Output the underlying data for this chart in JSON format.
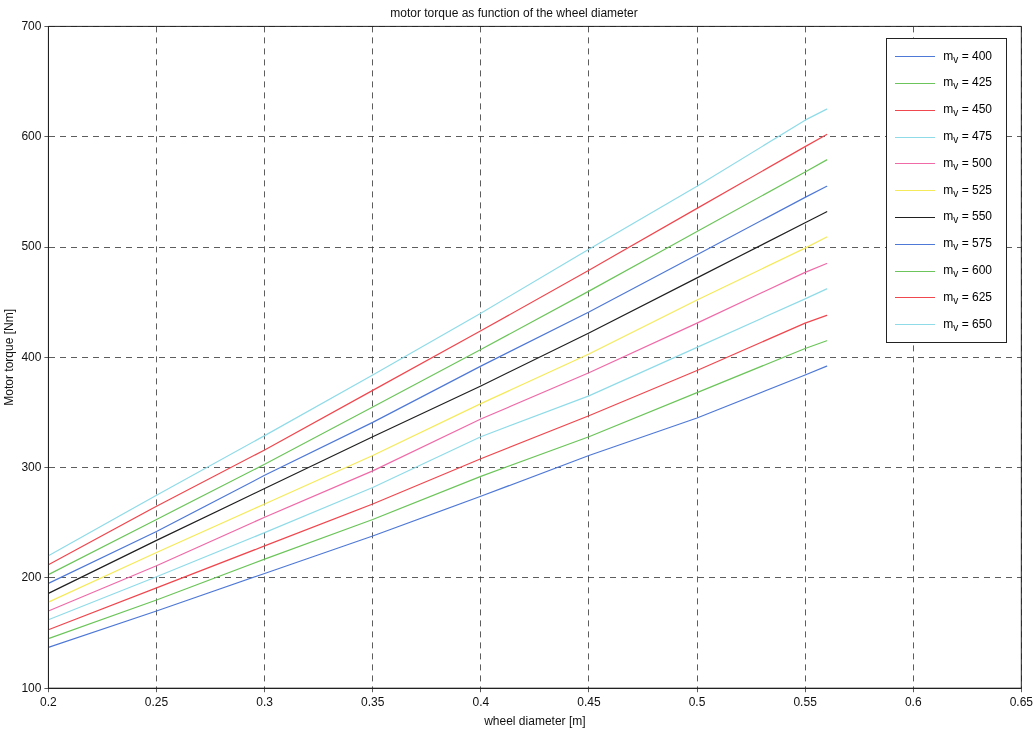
{
  "chart_data": {
    "type": "line",
    "title": "motor torque as function of the wheel diameter",
    "xlabel": "wheel diameter [m]",
    "ylabel": "Motor torque [Nm]",
    "x": [
      0.2,
      0.25,
      0.3,
      0.35,
      0.4,
      0.45,
      0.5,
      0.55,
      0.56
    ],
    "xlim": [
      0.2,
      0.65
    ],
    "xticks": [
      0.2,
      0.25,
      0.3,
      0.35,
      0.4,
      0.45,
      0.5,
      0.55,
      0.6,
      0.65
    ],
    "ylim": [
      100,
      700
    ],
    "yticks": [
      100,
      200,
      300,
      400,
      500,
      600,
      700
    ],
    "grid": true,
    "legend": "top right",
    "marker": "none",
    "line_style": "solid",
    "series": [
      {
        "name": "m$_{v}$ = 400",
        "color": "#4f79d6",
        "values": [
          137,
          170,
          204,
          238,
          274,
          311,
          345,
          384,
          392
        ]
      },
      {
        "name": "m$_{v}$ = 425",
        "color": "#6cc55a",
        "values": [
          145,
          180,
          217,
          253,
          292,
          328,
          368,
          408,
          415
        ]
      },
      {
        "name": "m$_{v}$ = 450",
        "color": "#f0474e",
        "values": [
          153,
          191,
          229,
          267,
          308,
          347,
          388,
          431,
          438
        ]
      },
      {
        "name": "m$_{v}$ = 475",
        "color": "#8fdbe8",
        "values": [
          162,
          201,
          241,
          282,
          328,
          365,
          409,
          453,
          462
        ]
      },
      {
        "name": "m$_{v}$ = 500",
        "color": "#f06aa8",
        "values": [
          170,
          211,
          255,
          297,
          344,
          386,
          431,
          477,
          485
        ]
      },
      {
        "name": "m$_{v}$ = 525",
        "color": "#f5ea5a",
        "values": [
          178,
          223,
          267,
          311,
          358,
          403,
          452,
          499,
          509
        ]
      },
      {
        "name": "m$_{v}$ = 550",
        "color": "#202020",
        "values": [
          186,
          234,
          281,
          328,
          374,
          422,
          472,
          522,
          532
        ]
      },
      {
        "name": "m$_{v}$ = 575",
        "color": "#4f79d6",
        "values": [
          195,
          242,
          293,
          341,
          392,
          441,
          493,
          545,
          555
        ]
      },
      {
        "name": "m$_{v}$ = 600",
        "color": "#6cc55a",
        "values": [
          203,
          253,
          303,
          355,
          407,
          460,
          514,
          568,
          579
        ]
      },
      {
        "name": "m$_{v}$ = 625",
        "color": "#f0474e",
        "values": [
          212,
          265,
          316,
          370,
          424,
          479,
          535,
          591,
          602
        ]
      },
      {
        "name": "m$_{v}$ = 650",
        "color": "#8fdbe8",
        "values": [
          220,
          275,
          329,
          384,
          440,
          498,
          555,
          615,
          625
        ]
      }
    ]
  }
}
